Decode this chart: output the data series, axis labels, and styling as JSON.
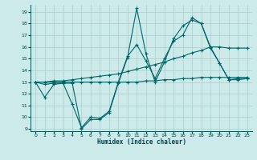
{
  "xlabel": "Humidex (Indice chaleur)",
  "background_color": "#cceaea",
  "grid_color": "#aacccc",
  "line_color": "#006666",
  "xlim": [
    -0.5,
    23.5
  ],
  "ylim": [
    8.8,
    19.6
  ],
  "yticks": [
    9,
    10,
    11,
    12,
    13,
    14,
    15,
    16,
    17,
    18,
    19
  ],
  "xticks": [
    0,
    1,
    2,
    3,
    4,
    5,
    6,
    7,
    8,
    9,
    10,
    11,
    12,
    13,
    14,
    15,
    16,
    17,
    18,
    19,
    20,
    21,
    22,
    23
  ],
  "series": [
    [
      13,
      11.7,
      12.8,
      12.9,
      12.9,
      9.0,
      9.8,
      9.8,
      10.4,
      12.9,
      15.1,
      19.3,
      15.4,
      13.0,
      14.7,
      16.7,
      17.8,
      18.3,
      18.0,
      15.9,
      14.6,
      13.2,
      13.3,
      13.3
    ],
    [
      13,
      12.8,
      12.9,
      12.9,
      11.1,
      9.1,
      10.0,
      9.9,
      10.5,
      13.0,
      15.2,
      16.2,
      14.8,
      13.3,
      15.0,
      16.5,
      17.0,
      18.5,
      18.0,
      16.0,
      14.6,
      13.2,
      13.2,
      13.3
    ],
    [
      13,
      13,
      13,
      13,
      13,
      13,
      13,
      13,
      13,
      13,
      13,
      13,
      13.1,
      13.1,
      13.2,
      13.2,
      13.3,
      13.3,
      13.4,
      13.4,
      13.4,
      13.4,
      13.4,
      13.4
    ],
    [
      13,
      13,
      13.1,
      13.1,
      13.2,
      13.3,
      13.4,
      13.5,
      13.6,
      13.7,
      13.9,
      14.1,
      14.3,
      14.5,
      14.7,
      15.0,
      15.2,
      15.5,
      15.7,
      16.0,
      16.0,
      15.9,
      15.9,
      15.9
    ]
  ]
}
